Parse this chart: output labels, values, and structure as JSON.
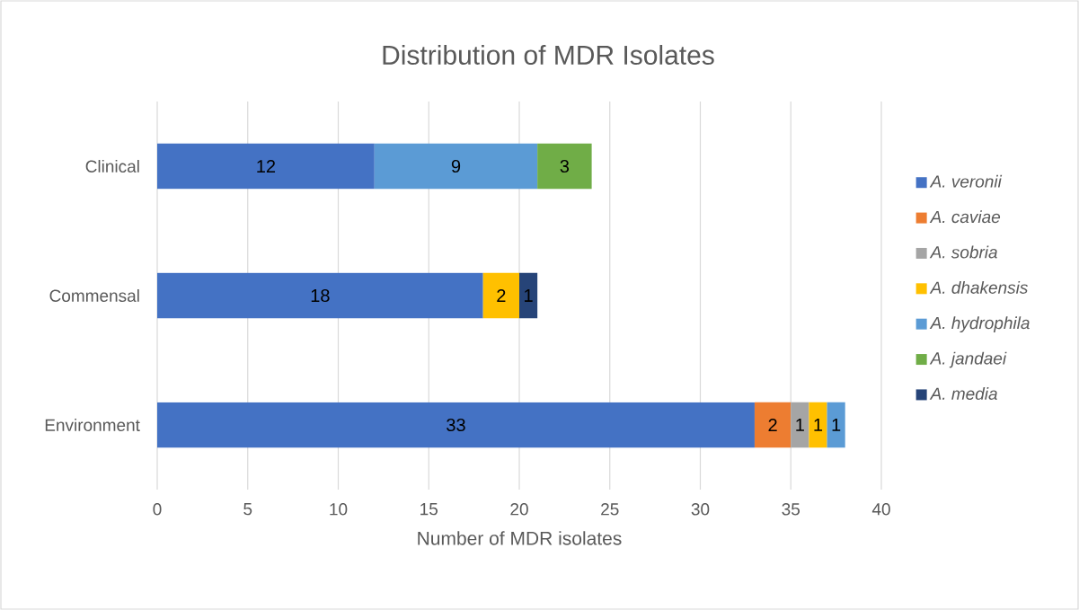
{
  "chart_data": {
    "type": "bar",
    "orientation": "horizontal",
    "stacked": true,
    "title": "Distribution of MDR Isolates",
    "xlabel": "Number of MDR isolates",
    "categories": [
      "Clinical",
      "Commensal",
      "Environment"
    ],
    "series": [
      {
        "name": "A. veronii",
        "color": "#4472c4",
        "values": [
          12,
          18,
          33
        ]
      },
      {
        "name": "A. caviae",
        "color": "#ed7d31",
        "values": [
          null,
          null,
          2
        ]
      },
      {
        "name": "A. sobria",
        "color": "#a5a5a5",
        "values": [
          null,
          null,
          1
        ]
      },
      {
        "name": "A. dhakensis",
        "color": "#ffc000",
        "values": [
          null,
          2,
          1
        ]
      },
      {
        "name": "A. hydrophila",
        "color": "#5b9bd5",
        "values": [
          9,
          null,
          1
        ]
      },
      {
        "name": "A. jandaei",
        "color": "#70ad47",
        "values": [
          3,
          null,
          null
        ]
      },
      {
        "name": "A. media",
        "color": "#264478",
        "values": [
          null,
          1,
          null
        ]
      }
    ],
    "xlim": [
      0,
      40
    ],
    "xticks": [
      0,
      5,
      10,
      15,
      20,
      25,
      30,
      35,
      40
    ],
    "grid": "x",
    "legend": "right",
    "data_labels": true
  }
}
